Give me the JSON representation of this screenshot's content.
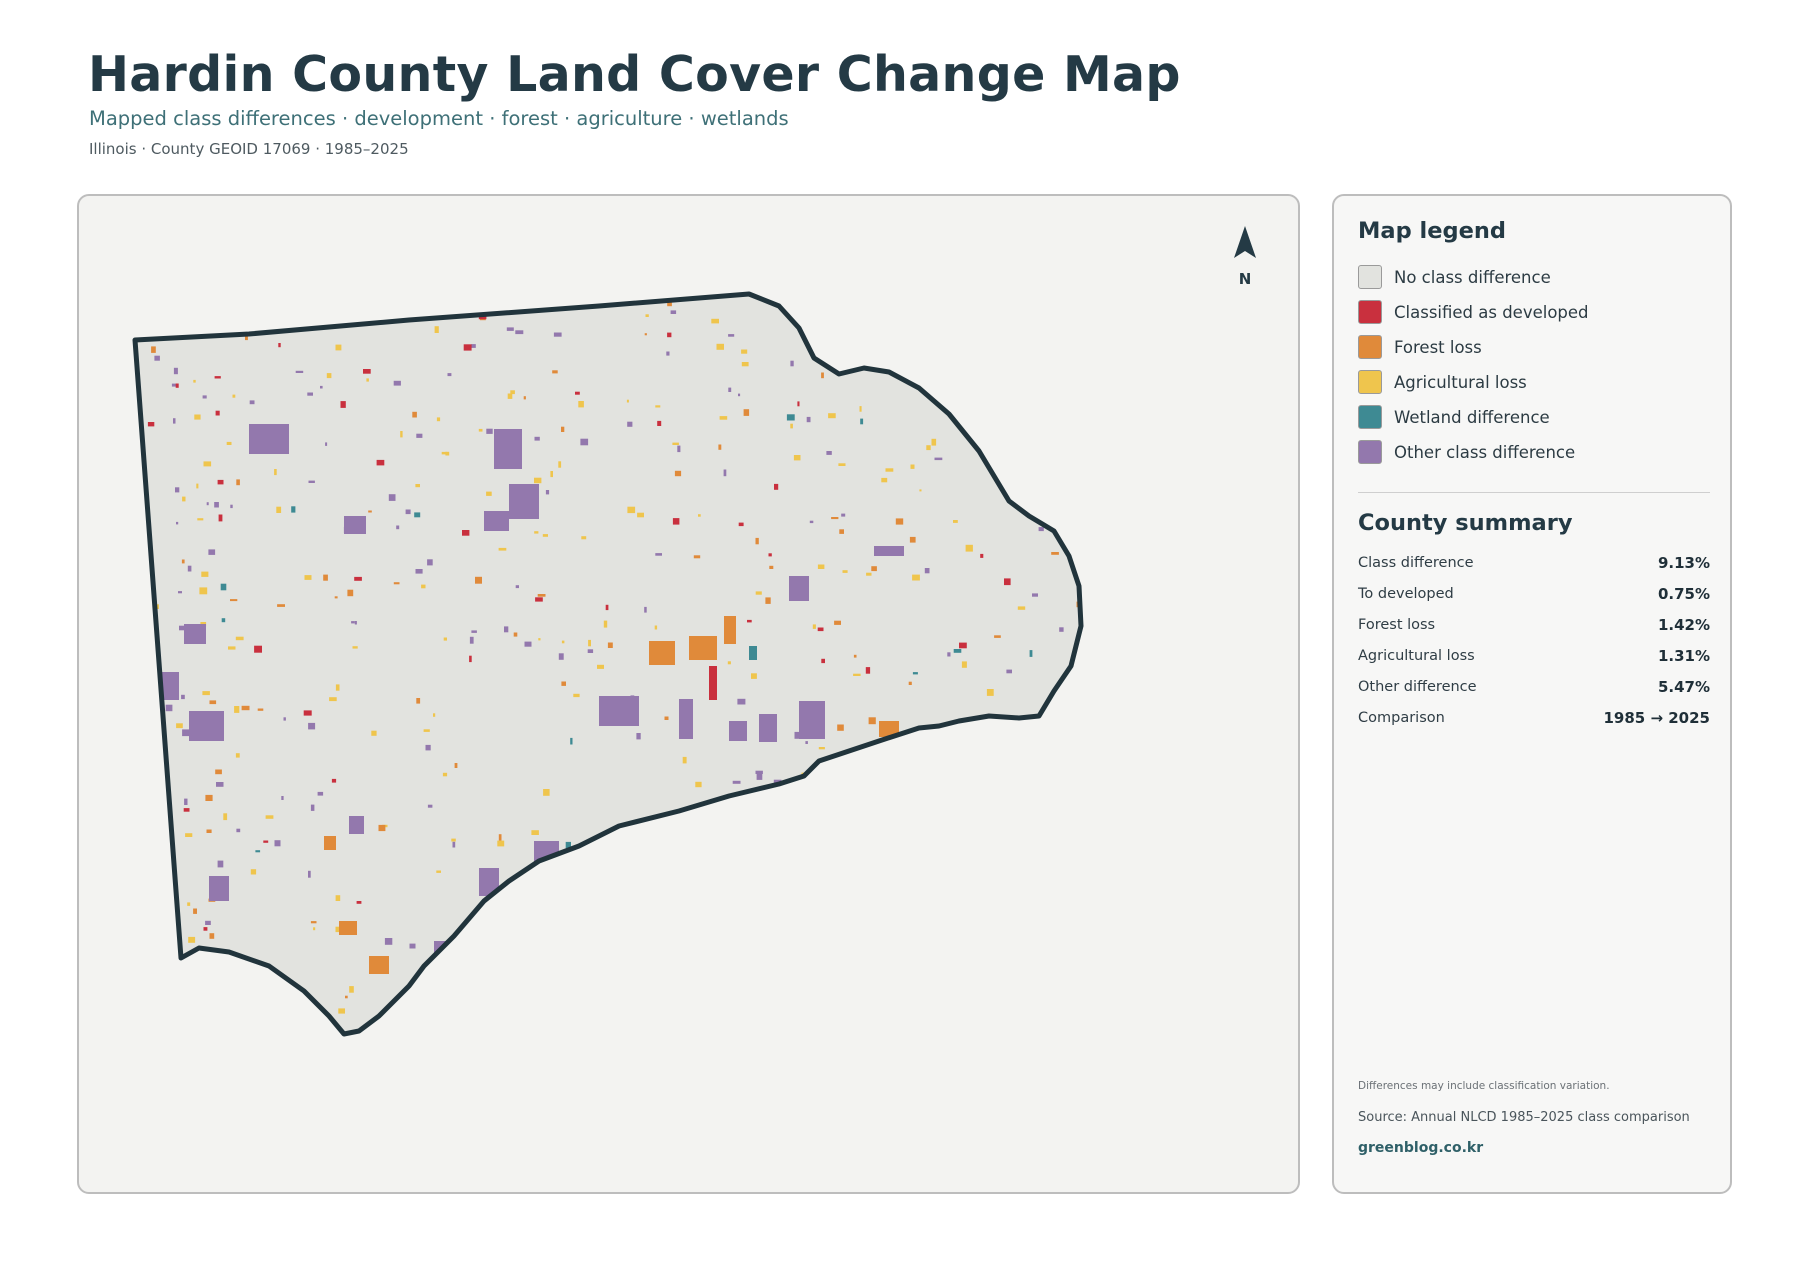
{
  "header": {
    "title": "Hardin County Land Cover Change Map",
    "subtitle": "Mapped class differences · development · forest · agriculture · wetlands",
    "meta": "Illinois · County GEOID 17069 · 1985–2025"
  },
  "map": {
    "north_label": "N",
    "colors": {
      "no_change": "#e2e3df",
      "developed": "#c9303e",
      "forest_loss": "#e08a3a",
      "agricultural_loss": "#efc54d",
      "wetland": "#3e8a93",
      "other": "#9378ad",
      "boundary": "#21343c"
    }
  },
  "legend": {
    "title": "Map legend",
    "items": [
      {
        "label": "No class difference",
        "color": "#e2e3df"
      },
      {
        "label": "Classified as developed",
        "color": "#c9303e"
      },
      {
        "label": "Forest loss",
        "color": "#e08a3a"
      },
      {
        "label": "Agricultural loss",
        "color": "#efc54d"
      },
      {
        "label": "Wetland difference",
        "color": "#3e8a93"
      },
      {
        "label": "Other class difference",
        "color": "#9378ad"
      }
    ]
  },
  "summary": {
    "title": "County summary",
    "rows": [
      {
        "label": "Class difference",
        "value": "9.13%"
      },
      {
        "label": "To developed",
        "value": "0.75%"
      },
      {
        "label": "Forest loss",
        "value": "1.42%"
      },
      {
        "label": "Agricultural loss",
        "value": "1.31%"
      },
      {
        "label": "Other difference",
        "value": "5.47%"
      },
      {
        "label": "Comparison",
        "value": "1985 → 2025"
      }
    ]
  },
  "footer": {
    "note": "Differences may include classification variation.",
    "source": "Source: Annual NLCD 1985–2025 class comparison",
    "credit": "greenblog.co.kr"
  }
}
